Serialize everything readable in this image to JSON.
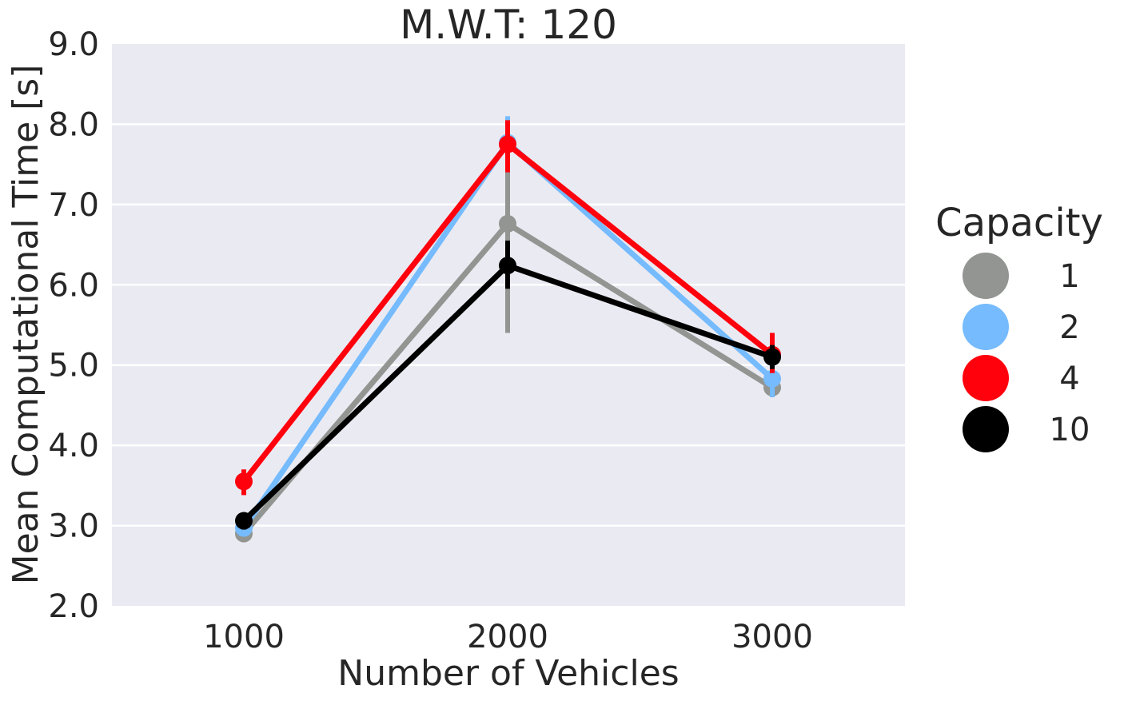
{
  "chart_data": {
    "type": "line",
    "title": "M.W.T: 120",
    "xlabel": "Number of Vehicles",
    "ylabel": "Mean Computational Time [s]",
    "categories": [
      "1000",
      "2000",
      "3000"
    ],
    "ylim": [
      2.0,
      9.0
    ],
    "yticks": [
      "2.0",
      "3.0",
      "4.0",
      "5.0",
      "6.0",
      "7.0",
      "8.0",
      "9.0"
    ],
    "grid": true,
    "legend": {
      "title": "Capacity",
      "placement": "right"
    },
    "series": [
      {
        "name": "1",
        "color": "#929591",
        "values": [
          2.9,
          6.76,
          4.72
        ],
        "ci_low": [
          2.85,
          5.4,
          4.6
        ],
        "ci_high": [
          2.95,
          8.0,
          4.85
        ]
      },
      {
        "name": "2",
        "color": "#75bbfd",
        "values": [
          2.97,
          7.77,
          4.83
        ],
        "ci_low": [
          2.9,
          7.4,
          4.6
        ],
        "ci_high": [
          3.05,
          8.1,
          5.0
        ]
      },
      {
        "name": "4",
        "color": "#ff000d",
        "values": [
          3.55,
          7.75,
          5.13
        ],
        "ci_low": [
          3.38,
          7.4,
          4.9
        ],
        "ci_high": [
          3.7,
          8.05,
          5.4
        ]
      },
      {
        "name": "10",
        "color": "#000000",
        "values": [
          3.06,
          6.24,
          5.1
        ],
        "ci_low": [
          2.95,
          5.95,
          4.95
        ],
        "ci_high": [
          3.15,
          6.55,
          5.25
        ]
      }
    ]
  }
}
